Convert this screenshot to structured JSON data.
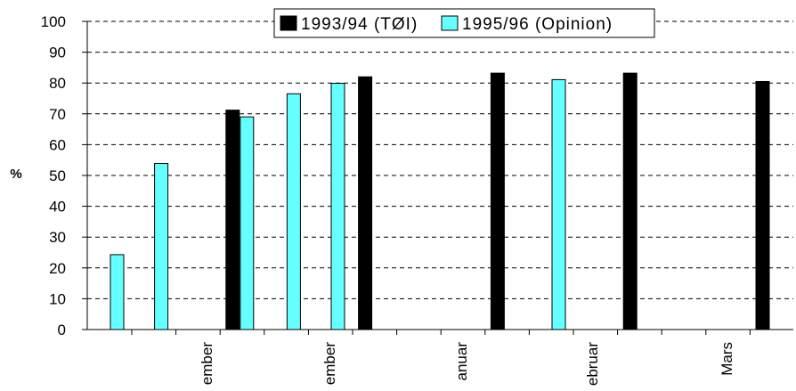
{
  "chart_data": {
    "type": "bar",
    "ylabel": "%",
    "xlabel": "",
    "title": "",
    "ylim": [
      0,
      100
    ],
    "yticks": [
      0,
      10,
      20,
      30,
      40,
      50,
      60,
      70,
      80,
      90,
      100
    ],
    "grid": "horizontal-dashed",
    "legend_position": "top",
    "legend": [
      "1993/94 (TØI)",
      "1995/96 (Opinion)"
    ],
    "x_tick_labels": [
      "ember",
      "ember",
      "anuar",
      "ebruar",
      "Mars"
    ],
    "series": [
      {
        "name": "1993/94 (TØI)",
        "color": "#000000",
        "slots": [
          3,
          6,
          9,
          12,
          15
        ],
        "values": [
          71.2,
          82.0,
          83.2,
          83.2,
          80.5
        ]
      },
      {
        "name": "1995/96 (Opinion)",
        "color": "#66ffff",
        "slots": [
          0,
          1,
          3,
          4,
          5,
          10
        ],
        "values": [
          24.3,
          53.9,
          69.0,
          76.5,
          79.9,
          81.1
        ]
      }
    ]
  }
}
